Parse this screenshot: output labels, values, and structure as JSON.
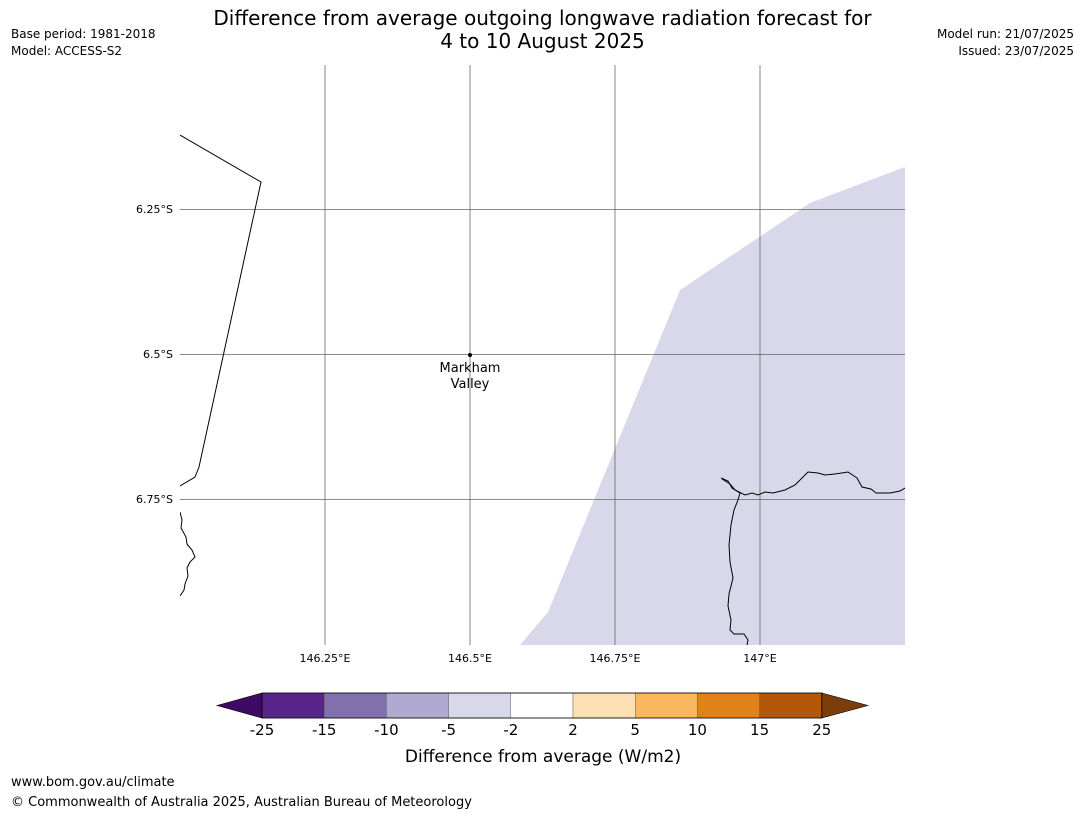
{
  "header": {
    "title_line1": "Difference from average outgoing longwave radiation forecast for",
    "title_line2": "4 to 10 August 2025",
    "base_period": "Base period: 1981-2018",
    "model": "Model: ACCESS-S2",
    "model_run": "Model run: 21/07/2025",
    "issued": "Issued: 23/07/2025"
  },
  "map": {
    "longitude_labels": [
      "146.25°E",
      "146.5°E",
      "146.75°E",
      "147°E"
    ],
    "latitude_labels": [
      "6.25°S",
      "6.5°S",
      "6.75°S"
    ],
    "place_label_line1": "Markham",
    "place_label_line2": "Valley",
    "anomaly_fill_color": "#d8d8ea",
    "coastline_color": "#000000",
    "gridline_color": "#666666"
  },
  "colorbar": {
    "label": "Difference from average (W/m2)",
    "ticks": [
      "-25",
      "-15",
      "-10",
      "-5",
      "-2",
      "2",
      "5",
      "10",
      "15",
      "25"
    ],
    "colors": [
      "#3f0a64",
      "#57248a",
      "#8270ae",
      "#b0a9d1",
      "#d8d8ea",
      "#ffffff",
      "#fddfb4",
      "#fbb660",
      "#e1811a",
      "#b3580a",
      "#7d3d0b"
    ]
  },
  "footer": {
    "url": "www.bom.gov.au/climate",
    "copyright": "© Commonwealth of Australia 2025, Australian Bureau of Meteorology"
  }
}
